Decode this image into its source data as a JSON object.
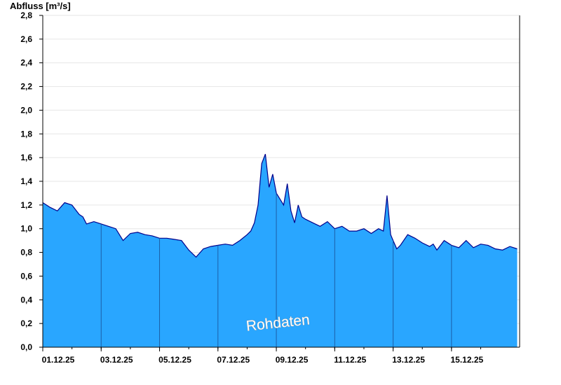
{
  "chart_data": {
    "type": "area",
    "ylabel": "Abfluss [m³/s]",
    "xlabel": "",
    "title": "",
    "watermark": "Rohdaten",
    "x_unit": "days",
    "xlim": [
      "2025-12-01",
      "2025-12-17T08:00"
    ],
    "ylim": [
      0,
      2.8
    ],
    "y_ticks": [
      "0,0",
      "0,2",
      "0,4",
      "0,6",
      "0,8",
      "1,0",
      "1,2",
      "1,4",
      "1,6",
      "1,8",
      "2,0",
      "2,2",
      "2,4",
      "2,6",
      "2,8"
    ],
    "x_ticks": [
      "01.12.25",
      "03.12.25",
      "05.12.25",
      "07.12.25",
      "09.12.25",
      "11.12.25",
      "13.12.25",
      "15.12.25"
    ],
    "grid": true,
    "colors": {
      "fill": "#29a6ff",
      "line": "#00008b",
      "grid": "#e6e6e6",
      "axis": "#000000"
    },
    "series": [
      {
        "x": [
          "2025-12-01T00:00",
          "2025-12-01T06:00",
          "2025-12-01T12:00",
          "2025-12-01T18:00",
          "2025-12-02T00:00",
          "2025-12-02T06:00",
          "2025-12-02T09:00",
          "2025-12-02T12:00",
          "2025-12-02T18:00",
          "2025-12-03T00:00",
          "2025-12-03T06:00",
          "2025-12-03T12:00",
          "2025-12-03T18:00",
          "2025-12-04T00:00",
          "2025-12-04T06:00",
          "2025-12-04T12:00",
          "2025-12-04T18:00",
          "2025-12-05T00:00",
          "2025-12-05T06:00",
          "2025-12-05T12:00",
          "2025-12-05T18:00",
          "2025-12-06T00:00",
          "2025-12-06T06:00",
          "2025-12-06T12:00",
          "2025-12-06T18:00",
          "2025-12-07T00:00",
          "2025-12-07T06:00",
          "2025-12-07T12:00",
          "2025-12-07T18:00",
          "2025-12-08T00:00",
          "2025-12-08T03:00",
          "2025-12-08T06:00",
          "2025-12-08T09:00",
          "2025-12-08T12:00",
          "2025-12-08T15:00",
          "2025-12-08T18:00",
          "2025-12-08T21:00",
          "2025-12-09T00:00",
          "2025-12-09T03:00",
          "2025-12-09T06:00",
          "2025-12-09T09:00",
          "2025-12-09T12:00",
          "2025-12-09T15:00",
          "2025-12-09T18:00",
          "2025-12-09T21:00",
          "2025-12-10T00:00",
          "2025-12-10T06:00",
          "2025-12-10T12:00",
          "2025-12-10T18:00",
          "2025-12-11T00:00",
          "2025-12-11T06:00",
          "2025-12-11T12:00",
          "2025-12-11T18:00",
          "2025-12-12T00:00",
          "2025-12-12T06:00",
          "2025-12-12T12:00",
          "2025-12-12T16:00",
          "2025-12-12T19:00",
          "2025-12-12T22:00",
          "2025-12-13T00:00",
          "2025-12-13T03:00",
          "2025-12-13T06:00",
          "2025-12-13T12:00",
          "2025-12-13T18:00",
          "2025-12-14T00:00",
          "2025-12-14T06:00",
          "2025-12-14T09:00",
          "2025-12-14T12:00",
          "2025-12-14T18:00",
          "2025-12-15T00:00",
          "2025-12-15T06:00",
          "2025-12-15T12:00",
          "2025-12-15T18:00",
          "2025-12-16T00:00",
          "2025-12-16T06:00",
          "2025-12-16T12:00",
          "2025-12-16T18:00",
          "2025-12-17T00:00",
          "2025-12-17T06:00"
        ],
        "y": [
          1.22,
          1.18,
          1.15,
          1.22,
          1.2,
          1.12,
          1.1,
          1.04,
          1.06,
          1.04,
          1.02,
          1.0,
          0.9,
          0.96,
          0.97,
          0.95,
          0.94,
          0.92,
          0.92,
          0.91,
          0.9,
          0.82,
          0.76,
          0.83,
          0.85,
          0.86,
          0.87,
          0.86,
          0.9,
          0.95,
          0.98,
          1.05,
          1.2,
          1.55,
          1.63,
          1.35,
          1.46,
          1.3,
          1.25,
          1.2,
          1.38,
          1.15,
          1.05,
          1.2,
          1.1,
          1.08,
          1.05,
          1.02,
          1.06,
          1.0,
          1.02,
          0.98,
          0.98,
          1.0,
          0.96,
          1.0,
          0.98,
          1.28,
          0.95,
          0.9,
          0.83,
          0.86,
          0.95,
          0.92,
          0.88,
          0.85,
          0.87,
          0.82,
          0.9,
          0.86,
          0.84,
          0.9,
          0.84,
          0.87,
          0.86,
          0.83,
          0.82,
          0.85,
          0.83
        ]
      }
    ]
  }
}
